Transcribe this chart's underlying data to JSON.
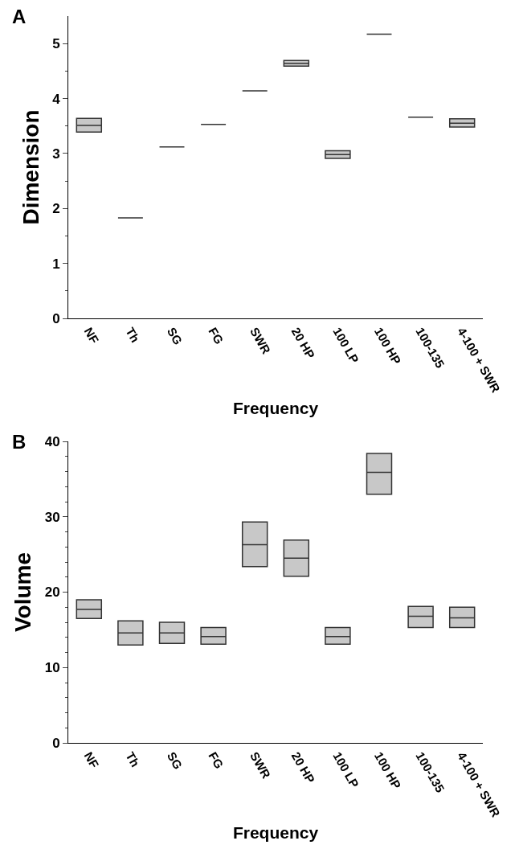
{
  "chart_data": [
    {
      "type": "box",
      "title": "A",
      "xlabel": "Frequency",
      "ylabel": "Dimension",
      "categories": [
        "NF",
        "Th",
        "SG",
        "FG",
        "SWR",
        "20 HP",
        "100 LP",
        "100 HP",
        "100-135",
        "4-100 + SWR"
      ],
      "series": [
        {
          "color": "#333333",
          "boxes": [
            {
              "low": 3.39,
              "q1": 3.39,
              "median": 3.51,
              "q3": 3.64,
              "high": 3.64
            },
            {
              "low": 1.83,
              "q1": 1.83,
              "median": 1.83,
              "q3": 1.83,
              "high": 1.83
            },
            {
              "low": 3.12,
              "q1": 3.12,
              "median": 3.12,
              "q3": 3.12,
              "high": 3.12
            },
            {
              "low": 3.53,
              "q1": 3.53,
              "median": 3.53,
              "q3": 3.53,
              "high": 3.53
            },
            {
              "low": 4.14,
              "q1": 4.14,
              "median": 4.14,
              "q3": 4.14,
              "high": 4.14
            },
            {
              "low": 4.59,
              "q1": 4.59,
              "median": 4.64,
              "q3": 4.69,
              "high": 4.69
            },
            {
              "low": 2.91,
              "q1": 2.91,
              "median": 2.98,
              "q3": 3.05,
              "high": 3.05
            },
            {
              "low": 5.17,
              "q1": 5.17,
              "median": 5.17,
              "q3": 5.17,
              "high": 5.17
            },
            {
              "low": 3.66,
              "q1": 3.66,
              "median": 3.66,
              "q3": 3.66,
              "high": 3.66
            },
            {
              "low": 3.48,
              "q1": 3.48,
              "median": 3.55,
              "q3": 3.63,
              "high": 3.63
            }
          ]
        }
      ],
      "ylim": [
        0,
        5.5
      ],
      "yticks": [
        0,
        {
          "value": 0.5,
          "label": null
        },
        1,
        {
          "value": 1.5,
          "label": null
        },
        2,
        {
          "value": 2.5,
          "label": null
        },
        3,
        {
          "value": 3.5,
          "label": null
        },
        4,
        {
          "value": 4.5,
          "label": null
        },
        5
      ],
      "grid": false
    },
    {
      "type": "box",
      "title": "B",
      "xlabel": "Frequency",
      "ylabel": "Volume",
      "categories": [
        "NF",
        "Th",
        "SG",
        "FG",
        "SWR",
        "20 HP",
        "100 LP",
        "100 HP",
        "100-135",
        "4-100 + SWR"
      ],
      "series": [
        {
          "color": "#333333",
          "boxes": [
            {
              "low": 16.5,
              "q1": 16.5,
              "median": 17.7,
              "q3": 19.0,
              "high": 19.0
            },
            {
              "low": 13.0,
              "q1": 13.0,
              "median": 14.6,
              "q3": 16.2,
              "high": 16.2
            },
            {
              "low": 13.2,
              "q1": 13.2,
              "median": 14.6,
              "q3": 16.0,
              "high": 16.0
            },
            {
              "low": 13.1,
              "q1": 13.1,
              "median": 14.1,
              "q3": 15.3,
              "high": 15.3
            },
            {
              "low": 23.4,
              "q1": 23.4,
              "median": 26.3,
              "q3": 29.3,
              "high": 29.3
            },
            {
              "low": 22.1,
              "q1": 22.1,
              "median": 24.5,
              "q3": 26.9,
              "high": 26.9
            },
            {
              "low": 13.1,
              "q1": 13.1,
              "median": 14.1,
              "q3": 15.3,
              "high": 15.3
            },
            {
              "low": 33.0,
              "q1": 33.0,
              "median": 35.9,
              "q3": 38.4,
              "high": 38.4
            },
            {
              "low": 15.3,
              "q1": 15.3,
              "median": 16.8,
              "q3": 18.1,
              "high": 18.1
            },
            {
              "low": 15.3,
              "q1": 15.3,
              "median": 16.6,
              "q3": 18.0,
              "high": 18.0
            }
          ]
        }
      ],
      "ylim": [
        0,
        40
      ],
      "yticks": [
        0,
        {
          "value": 2,
          "label": null
        },
        {
          "value": 4,
          "label": null
        },
        {
          "value": 6,
          "label": null
        },
        {
          "value": 8,
          "label": null
        },
        10,
        {
          "value": 12,
          "label": null
        },
        {
          "value": 14,
          "label": null
        },
        {
          "value": 16,
          "label": null
        },
        {
          "value": 18,
          "label": null
        },
        20,
        {
          "value": 22,
          "label": null
        },
        {
          "value": 24,
          "label": null
        },
        {
          "value": 26,
          "label": null
        },
        {
          "value": 28,
          "label": null
        },
        30,
        {
          "value": 32,
          "label": null
        },
        {
          "value": 34,
          "label": null
        },
        {
          "value": 36,
          "label": null
        },
        {
          "value": 38,
          "label": null
        },
        40
      ],
      "grid": false
    }
  ]
}
